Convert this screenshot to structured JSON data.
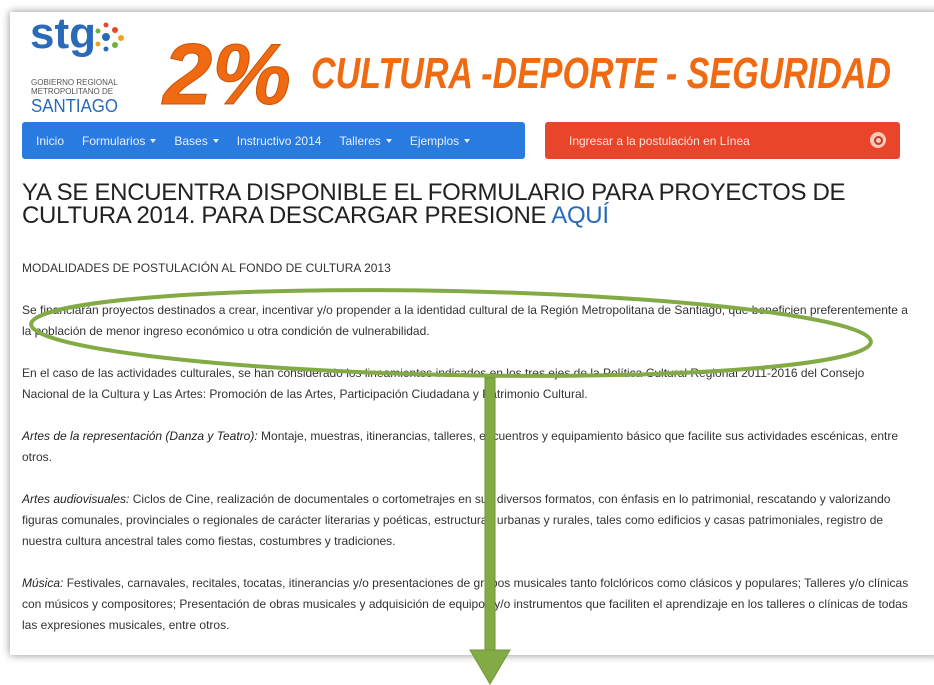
{
  "header": {
    "logo": {
      "mark": "stg",
      "line1": "GOBIERNO REGIONAL",
      "line2": "METROPOLITANO DE",
      "line3": "SANTIAGO"
    },
    "banner": {
      "percent": "2%",
      "title": "CULTURA -DEPORTE - SEGURIDAD"
    }
  },
  "nav": {
    "items": [
      "Inicio",
      "Formularios",
      "Bases",
      "Instructivo 2014",
      "Talleres",
      "Ejemplos"
    ]
  },
  "search": {
    "placeholder": "Ingresar a la postulación en Línea"
  },
  "headline": {
    "text": "YA SE ENCUENTRA DISPONIBLE EL FORMULARIO PARA PROYECTOS DE CULTURA 2014. PARA DESCARGAR PRESIONE",
    "link": "AQUÍ"
  },
  "content": {
    "paragraphs": [
      {
        "text": "MODALIDADES DE POSTULACIÓN AL FONDO DE CULTURA 2013"
      },
      {
        "text": "Se financiarán proyectos destinados a crear, incentivar y/o propender a la identidad cultural de la Región Metropolitana de Santiago, que beneficien preferentemente a la población de menor ingreso económico u otra condición de vulnerabilidad."
      },
      {
        "text": "En el caso de las actividades culturales, se han considerado los lineamientos indicados en los tres ejes de la Política Cultural Regional 2011-2016 del Consejo Nacional de la Cultura y Las Artes: Promoción de las Artes, Participación Ciudadana y Patrimonio Cultural."
      },
      {
        "lead": "Artes de la representación (Danza y Teatro):",
        "text": "Montaje, muestras, itinerancias, talleres, encuentros y equipamiento básico que facilite sus actividades escénicas, entre otros."
      },
      {
        "lead": "Artes audiovisuales:",
        "text": "Ciclos de Cine, realización de documentales o cortometrajes en sus diversos formatos, con énfasis en lo patrimonial, rescatando y valorizando figuras comunales, provinciales o regionales de carácter literarias y poéticas, estructuras urbanas y rurales, tales como edificios y casas patrimoniales, registro de nuestra cultura ancestral tales como fiestas, costumbres y tradiciones."
      },
      {
        "lead": "Música:",
        "text": "Festivales, carnavales, recitales, tocatas, itinerancias y/o presentaciones de grupos musicales tanto folclóricos como clásicos y populares; Talleres y/o clínicas con músicos y compositores; Presentación de obras musicales y adquisición de equipos y/o instrumentos que faciliten el aprendizaje en los talleres o clínicas de todas las expresiones musicales, entre otros."
      }
    ]
  }
}
